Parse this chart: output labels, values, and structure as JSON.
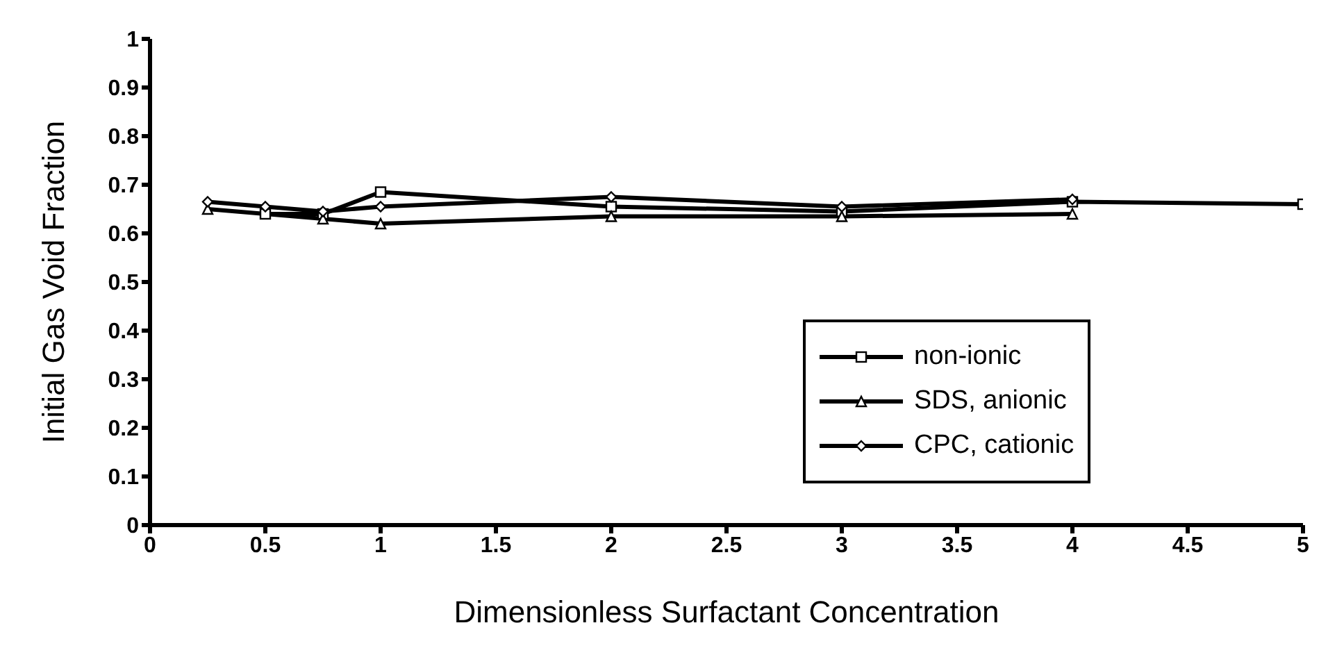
{
  "chart_data": {
    "type": "line",
    "xlabel": "Dimensionless Surfactant Concentration",
    "ylabel": "Initial Gas Void Fraction",
    "xlim": [
      0,
      5
    ],
    "xticks": [
      0,
      0.5,
      1,
      1.5,
      2,
      2.5,
      3,
      3.5,
      4,
      4.5,
      5
    ],
    "ylim": [
      0,
      1
    ],
    "yticks": [
      0,
      0.1,
      0.2,
      0.3,
      0.4,
      0.5,
      0.6,
      0.7,
      0.8,
      0.9,
      1
    ],
    "grid": false,
    "legend": "bottom right",
    "line_style": "solid",
    "series": [
      {
        "name": "non-ionic",
        "color": "#000000",
        "marker": "square",
        "x": [
          0.5,
          0.75,
          1,
          2,
          3,
          4,
          5
        ],
        "values": [
          0.64,
          0.64,
          0.685,
          0.655,
          0.645,
          0.665,
          0.66
        ]
      },
      {
        "name": "SDS, anionic",
        "color": "#000000",
        "marker": "triangle",
        "x": [
          0.25,
          0.75,
          1,
          2,
          3,
          4
        ],
        "values": [
          0.65,
          0.63,
          0.62,
          0.635,
          0.635,
          0.64
        ]
      },
      {
        "name": "CPC, cationic",
        "color": "#000000",
        "marker": "diamond",
        "x": [
          0.25,
          0.5,
          0.75,
          1,
          2,
          3,
          4
        ],
        "values": [
          0.665,
          0.655,
          0.645,
          0.655,
          0.675,
          0.655,
          0.67
        ]
      }
    ]
  }
}
